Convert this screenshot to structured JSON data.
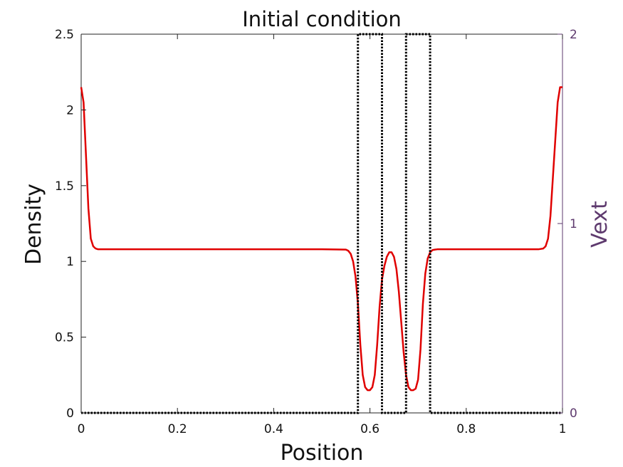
{
  "chart_data": {
    "type": "line",
    "title": "Initial condition",
    "xlabel": "Position",
    "ylabel": "Density",
    "y2label": "Vext",
    "xlim": [
      0,
      1
    ],
    "ylim": [
      0,
      2.5
    ],
    "y2lim": [
      0,
      2
    ],
    "grid": false,
    "x_ticks": [
      0,
      0.2,
      0.4,
      0.6,
      0.8,
      1
    ],
    "x_tick_labels": [
      "0",
      "0.2",
      "0.4",
      "0.6",
      "0.8",
      "1"
    ],
    "y_ticks": [
      0,
      0.5,
      1,
      1.5,
      2,
      2.5
    ],
    "y_tick_labels": [
      "0",
      "0.5",
      "1",
      "1.5",
      "2",
      "2.5"
    ],
    "y2_ticks": [
      0,
      1,
      2
    ],
    "y2_tick_labels": [
      "0",
      "1",
      "2"
    ],
    "colors": {
      "density": "#e00000",
      "vext": "#000000",
      "y2axis": "#5e3a6e"
    },
    "series": [
      {
        "axis": "left",
        "style": "solid",
        "x": [
          0,
          0.005,
          0.01,
          0.015,
          0.02,
          0.025,
          0.03,
          0.035,
          0.04,
          0.1,
          0.2,
          0.3,
          0.4,
          0.5,
          0.55,
          0.555,
          0.56,
          0.565,
          0.57,
          0.575,
          0.58,
          0.585,
          0.59,
          0.595,
          0.6,
          0.605,
          0.61,
          0.615,
          0.62,
          0.625,
          0.63,
          0.635,
          0.64,
          0.645,
          0.65,
          0.655,
          0.66,
          0.665,
          0.67,
          0.675,
          0.68,
          0.685,
          0.69,
          0.695,
          0.7,
          0.705,
          0.71,
          0.715,
          0.72,
          0.725,
          0.73,
          0.735,
          0.74,
          0.745,
          0.75,
          0.8,
          0.9,
          0.95,
          0.96,
          0.965,
          0.97,
          0.975,
          0.98,
          0.985,
          0.99,
          0.995,
          1
        ],
        "y": [
          2.15,
          2.05,
          1.7,
          1.35,
          1.15,
          1.1,
          1.085,
          1.08,
          1.08,
          1.08,
          1.08,
          1.08,
          1.08,
          1.08,
          1.078,
          1.07,
          1.05,
          1.0,
          0.9,
          0.72,
          0.45,
          0.25,
          0.17,
          0.15,
          0.15,
          0.17,
          0.25,
          0.45,
          0.7,
          0.88,
          0.97,
          1.03,
          1.06,
          1.06,
          1.03,
          0.95,
          0.8,
          0.6,
          0.4,
          0.25,
          0.17,
          0.15,
          0.15,
          0.16,
          0.22,
          0.42,
          0.72,
          0.92,
          1.02,
          1.06,
          1.075,
          1.078,
          1.08,
          1.08,
          1.08,
          1.08,
          1.08,
          1.08,
          1.085,
          1.1,
          1.15,
          1.3,
          1.55,
          1.8,
          2.05,
          2.15,
          2.15
        ]
      },
      {
        "axis": "right",
        "style": "dotted",
        "x": [
          0,
          0.575,
          0.575,
          0.625,
          0.625,
          0.675,
          0.675,
          0.725,
          0.725,
          1
        ],
        "y": [
          0,
          0,
          2,
          2,
          0,
          0,
          2,
          2,
          0,
          0
        ]
      }
    ]
  }
}
